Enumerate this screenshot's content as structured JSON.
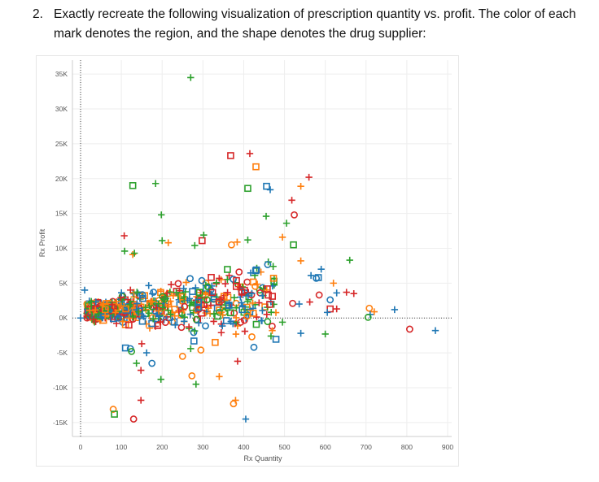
{
  "question": {
    "number": "2.",
    "text": "Exactly recreate the following visualization of prescription quantity vs. profit.  The color of each mark denotes the region, and the shape denotes the drug supplier:"
  },
  "colors": {
    "blue": "#1f77b4",
    "orange": "#ff7f0e",
    "green": "#2ca02c",
    "red": "#d62728"
  },
  "chart_data": {
    "type": "scatter",
    "title": "",
    "xlabel": "Rx Quantity",
    "ylabel": "Rx Profit",
    "xlim": [
      -20,
      910
    ],
    "ylim": [
      -17000,
      37000
    ],
    "grid": true,
    "xticks": [
      0,
      100,
      200,
      300,
      400,
      500,
      600,
      700,
      800,
      900
    ],
    "xtick_labels": [
      "0",
      "100",
      "200",
      "300",
      "400",
      "500",
      "600",
      "700",
      "800",
      "900"
    ],
    "yticks": [
      35000,
      30000,
      25000,
      20000,
      15000,
      10000,
      5000,
      0,
      -5000,
      -10000,
      -15000
    ],
    "ytick_labels": [
      "35K",
      "30K",
      "25K",
      "20K",
      "15K",
      "10K",
      "5K",
      "0K",
      "-5K",
      "-10K",
      "-15K"
    ],
    "reference_lines": {
      "x": 0,
      "y": 0
    },
    "points": [
      {
        "x": 270,
        "y": 34500,
        "c": "green",
        "s": "plus"
      },
      {
        "x": 368,
        "y": 23300,
        "c": "red",
        "s": "square"
      },
      {
        "x": 415,
        "y": 23600,
        "c": "red",
        "s": "plus"
      },
      {
        "x": 430,
        "y": 21700,
        "c": "orange",
        "s": "square"
      },
      {
        "x": 128,
        "y": 19000,
        "c": "green",
        "s": "square"
      },
      {
        "x": 184,
        "y": 19300,
        "c": "green",
        "s": "plus"
      },
      {
        "x": 410,
        "y": 18600,
        "c": "green",
        "s": "square"
      },
      {
        "x": 456,
        "y": 18900,
        "c": "blue",
        "s": "square"
      },
      {
        "x": 465,
        "y": 18400,
        "c": "blue",
        "s": "plus"
      },
      {
        "x": 560,
        "y": 20200,
        "c": "red",
        "s": "plus"
      },
      {
        "x": 540,
        "y": 18900,
        "c": "orange",
        "s": "plus"
      },
      {
        "x": 518,
        "y": 16900,
        "c": "red",
        "s": "plus"
      },
      {
        "x": 198,
        "y": 14800,
        "c": "green",
        "s": "plus"
      },
      {
        "x": 455,
        "y": 14600,
        "c": "green",
        "s": "plus"
      },
      {
        "x": 524,
        "y": 14800,
        "c": "red",
        "s": "circle"
      },
      {
        "x": 505,
        "y": 13600,
        "c": "green",
        "s": "plus"
      },
      {
        "x": 107,
        "y": 11800,
        "c": "red",
        "s": "plus"
      },
      {
        "x": 495,
        "y": 11600,
        "c": "orange",
        "s": "plus"
      },
      {
        "x": 522,
        "y": 10500,
        "c": "green",
        "s": "square"
      },
      {
        "x": 298,
        "y": 11100,
        "c": "red",
        "s": "square"
      },
      {
        "x": 302,
        "y": 11900,
        "c": "green",
        "s": "plus"
      },
      {
        "x": 200,
        "y": 11100,
        "c": "green",
        "s": "plus"
      },
      {
        "x": 215,
        "y": 10800,
        "c": "orange",
        "s": "plus"
      },
      {
        "x": 280,
        "y": 10400,
        "c": "green",
        "s": "plus"
      },
      {
        "x": 370,
        "y": 10500,
        "c": "orange",
        "s": "circle"
      },
      {
        "x": 384,
        "y": 10900,
        "c": "orange",
        "s": "plus"
      },
      {
        "x": 410,
        "y": 11200,
        "c": "green",
        "s": "plus"
      },
      {
        "x": 108,
        "y": 9600,
        "c": "green",
        "s": "plus"
      },
      {
        "x": 128,
        "y": 9100,
        "c": "orange",
        "s": "plus"
      },
      {
        "x": 132,
        "y": 9300,
        "c": "green",
        "s": "plus"
      },
      {
        "x": 660,
        "y": 8300,
        "c": "green",
        "s": "plus"
      },
      {
        "x": 540,
        "y": 8200,
        "c": "orange",
        "s": "plus"
      },
      {
        "x": 590,
        "y": 7000,
        "c": "blue",
        "s": "plus"
      },
      {
        "x": 565,
        "y": 6100,
        "c": "blue",
        "s": "plus"
      },
      {
        "x": 578,
        "y": 5700,
        "c": "blue",
        "s": "circle"
      },
      {
        "x": 583,
        "y": 5800,
        "c": "blue",
        "s": "square"
      },
      {
        "x": 620,
        "y": 5000,
        "c": "orange",
        "s": "plus"
      },
      {
        "x": 585,
        "y": 3300,
        "c": "red",
        "s": "circle"
      },
      {
        "x": 628,
        "y": 3600,
        "c": "blue",
        "s": "plus"
      },
      {
        "x": 652,
        "y": 3700,
        "c": "red",
        "s": "plus"
      },
      {
        "x": 670,
        "y": 3500,
        "c": "red",
        "s": "plus"
      },
      {
        "x": 612,
        "y": 2600,
        "c": "blue",
        "s": "circle"
      },
      {
        "x": 562,
        "y": 2300,
        "c": "red",
        "s": "plus"
      },
      {
        "x": 612,
        "y": 1300,
        "c": "red",
        "s": "square"
      },
      {
        "x": 605,
        "y": 800,
        "c": "blue",
        "s": "plus"
      },
      {
        "x": 628,
        "y": 1300,
        "c": "red",
        "s": "plus"
      },
      {
        "x": 520,
        "y": 2100,
        "c": "red",
        "s": "circle"
      },
      {
        "x": 536,
        "y": 2000,
        "c": "blue",
        "s": "plus"
      },
      {
        "x": 708,
        "y": 1400,
        "c": "orange",
        "s": "circle"
      },
      {
        "x": 720,
        "y": 900,
        "c": "orange",
        "s": "plus"
      },
      {
        "x": 710,
        "y": 500,
        "c": "blue",
        "s": "plus"
      },
      {
        "x": 705,
        "y": 100,
        "c": "green",
        "s": "circle"
      },
      {
        "x": 770,
        "y": 1200,
        "c": "blue",
        "s": "plus"
      },
      {
        "x": 807,
        "y": -1600,
        "c": "red",
        "s": "circle"
      },
      {
        "x": 870,
        "y": -1800,
        "c": "blue",
        "s": "plus"
      },
      {
        "x": 0,
        "y": 0,
        "c": "blue",
        "s": "plus"
      },
      {
        "x": 10,
        "y": 4000,
        "c": "blue",
        "s": "plus"
      },
      {
        "x": 540,
        "y": -2200,
        "c": "blue",
        "s": "plus"
      },
      {
        "x": 600,
        "y": -2300,
        "c": "green",
        "s": "plus"
      },
      {
        "x": 470,
        "y": -1800,
        "c": "orange",
        "s": "plus"
      },
      {
        "x": 495,
        "y": -600,
        "c": "green",
        "s": "plus"
      },
      {
        "x": 420,
        "y": -2700,
        "c": "orange",
        "s": "circle"
      },
      {
        "x": 425,
        "y": -4200,
        "c": "blue",
        "s": "circle"
      },
      {
        "x": 330,
        "y": -3500,
        "c": "orange",
        "s": "square"
      },
      {
        "x": 345,
        "y": -2100,
        "c": "red",
        "s": "plus"
      },
      {
        "x": 270,
        "y": -4400,
        "c": "green",
        "s": "plus"
      },
      {
        "x": 295,
        "y": -4600,
        "c": "orange",
        "s": "circle"
      },
      {
        "x": 278,
        "y": -3300,
        "c": "blue",
        "s": "square"
      },
      {
        "x": 250,
        "y": -5500,
        "c": "orange",
        "s": "circle"
      },
      {
        "x": 110,
        "y": -4300,
        "c": "blue",
        "s": "square"
      },
      {
        "x": 122,
        "y": -4400,
        "c": "blue",
        "s": "circle"
      },
      {
        "x": 125,
        "y": -4800,
        "c": "green",
        "s": "circle"
      },
      {
        "x": 162,
        "y": -5000,
        "c": "blue",
        "s": "plus"
      },
      {
        "x": 150,
        "y": -3700,
        "c": "red",
        "s": "plus"
      },
      {
        "x": 137,
        "y": -6500,
        "c": "green",
        "s": "plus"
      },
      {
        "x": 175,
        "y": -6500,
        "c": "blue",
        "s": "circle"
      },
      {
        "x": 148,
        "y": -7500,
        "c": "red",
        "s": "plus"
      },
      {
        "x": 385,
        "y": -6200,
        "c": "red",
        "s": "plus"
      },
      {
        "x": 197,
        "y": -8800,
        "c": "green",
        "s": "plus"
      },
      {
        "x": 273,
        "y": -8300,
        "c": "orange",
        "s": "circle"
      },
      {
        "x": 340,
        "y": -8400,
        "c": "orange",
        "s": "plus"
      },
      {
        "x": 283,
        "y": -9500,
        "c": "green",
        "s": "plus"
      },
      {
        "x": 380,
        "y": -11800,
        "c": "orange",
        "s": "plus"
      },
      {
        "x": 375,
        "y": -12300,
        "c": "orange",
        "s": "circle"
      },
      {
        "x": 148,
        "y": -11800,
        "c": "red",
        "s": "plus"
      },
      {
        "x": 80,
        "y": -13100,
        "c": "orange",
        "s": "circle"
      },
      {
        "x": 83,
        "y": -13800,
        "c": "green",
        "s": "square"
      },
      {
        "x": 130,
        "y": -14500,
        "c": "red",
        "s": "circle"
      },
      {
        "x": 405,
        "y": -14500,
        "c": "blue",
        "s": "plus"
      }
    ],
    "cluster": {
      "seed": 7,
      "count": 560,
      "x_range": [
        15,
        480
      ],
      "y_range": [
        -4000,
        9000
      ],
      "color_cycle": [
        "blue",
        "orange",
        "green",
        "red"
      ],
      "shape_cycle": [
        "plus",
        "circle",
        "square",
        "plus",
        "plus"
      ]
    }
  }
}
